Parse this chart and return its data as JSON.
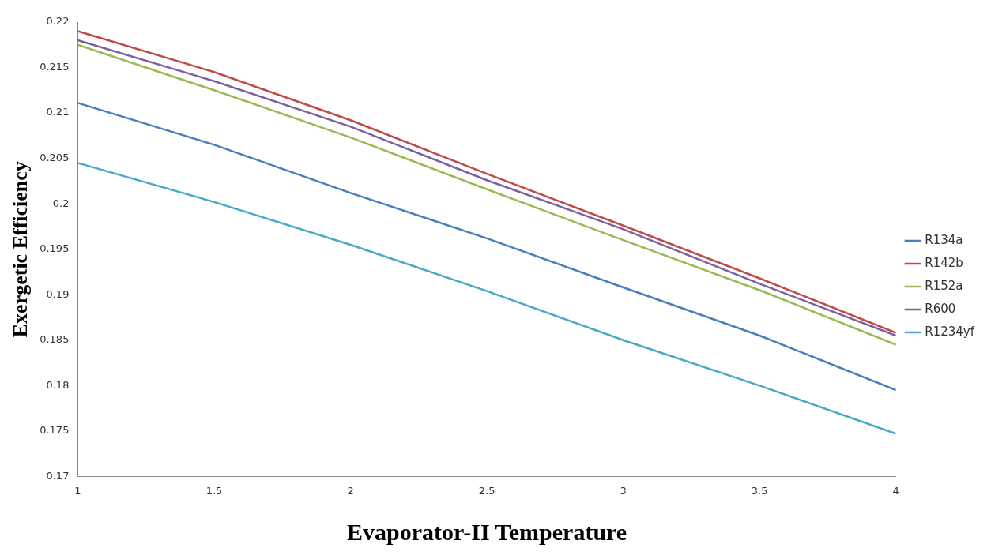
{
  "chart_data": {
    "type": "line",
    "xlabel": "Evaporator-II Temperature",
    "ylabel": "Exergetic Efficiency",
    "x": [
      1,
      1.5,
      2,
      2.5,
      3,
      3.5,
      4
    ],
    "series": [
      {
        "name": "R134a",
        "color": "#4a7ebb",
        "values": [
          0.2111,
          0.2065,
          0.2012,
          0.1962,
          0.1908,
          0.1855,
          0.1795
        ]
      },
      {
        "name": "R142b",
        "color": "#be4b48",
        "values": [
          0.219,
          0.2145,
          0.2092,
          0.2033,
          0.1976,
          0.1918,
          0.1858
        ]
      },
      {
        "name": "R152a",
        "color": "#98b954",
        "values": [
          0.2175,
          0.2125,
          0.2073,
          0.2016,
          0.196,
          0.1905,
          0.1845
        ]
      },
      {
        "name": "R600",
        "color": "#7d60a0",
        "values": [
          0.218,
          0.2135,
          0.2085,
          0.2026,
          0.1972,
          0.1912,
          0.1855
        ]
      },
      {
        "name": "R1234yf",
        "color": "#46aac5",
        "values": [
          0.2045,
          0.2002,
          0.1955,
          0.1904,
          0.185,
          0.18,
          0.1747
        ]
      }
    ],
    "xlim": [
      1,
      4
    ],
    "xticks": [
      1,
      1.5,
      2,
      2.5,
      3,
      3.5,
      4
    ],
    "ylim": [
      0.17,
      0.22
    ],
    "yticks": [
      0.17,
      0.175,
      0.18,
      0.185,
      0.19,
      0.195,
      0.2,
      0.205,
      0.21,
      0.215,
      0.22
    ],
    "grid": false,
    "legend": "right"
  }
}
